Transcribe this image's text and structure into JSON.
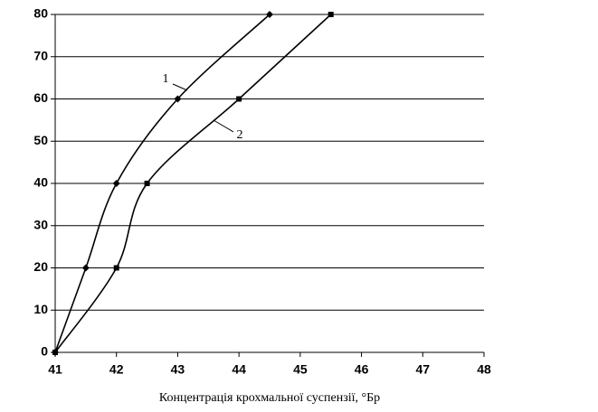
{
  "chart_data": {
    "type": "line",
    "x_label": "Концентрація крохмальної суспензії, °Бр",
    "series": [
      {
        "name": "1",
        "color": "#000000",
        "marker": "diamond",
        "x": [
          41,
          41.5,
          42,
          43,
          44.5
        ],
        "values": [
          0,
          20,
          40,
          60,
          80
        ]
      },
      {
        "name": "2",
        "color": "#000000",
        "marker": "square",
        "x": [
          41,
          42,
          42.5,
          44,
          45.5
        ],
        "values": [
          0,
          20,
          40,
          60,
          80
        ]
      }
    ],
    "xlim": [
      41,
      48
    ],
    "xticks": [
      41,
      42,
      43,
      44,
      45,
      46,
      47,
      48
    ],
    "ylim": [
      0,
      80
    ],
    "yticks": [
      0,
      10,
      20,
      30,
      40,
      50,
      60,
      70,
      80
    ],
    "grid": true
  }
}
